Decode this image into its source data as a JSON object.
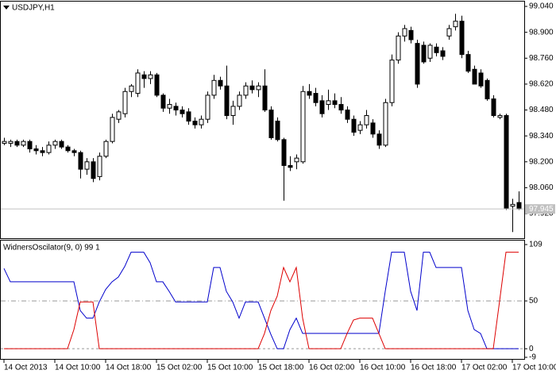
{
  "chart_data": [
    {
      "type": "candlestick",
      "title": "USDJPY,H1",
      "open": [
        98.3,
        98.3,
        98.31,
        98.29,
        98.31,
        98.27,
        98.26,
        98.25,
        98.29,
        98.31,
        98.28,
        98.26,
        98.25,
        98.16,
        98.2,
        98.12,
        98.23,
        98.31,
        98.43,
        98.46,
        98.58,
        98.57,
        98.67,
        98.65,
        98.67,
        98.56,
        98.49,
        98.5,
        98.48,
        98.47,
        98.42,
        98.4,
        98.43,
        98.56,
        98.64,
        98.61,
        98.45,
        98.5,
        98.56,
        98.61,
        98.59,
        98.61,
        98.48,
        98.42,
        98.32,
        98.18,
        98.2,
        98.2,
        98.58,
        98.57,
        98.53,
        98.51,
        98.53,
        98.51,
        98.48,
        98.43,
        98.37,
        98.4,
        98.41,
        98.35,
        98.29,
        98.52,
        98.75,
        98.88,
        98.91,
        98.84,
        98.83,
        98.76,
        98.82,
        98.8,
        98.88,
        98.93,
        98.96,
        98.78,
        98.7,
        98.68,
        98.64,
        98.54,
        98.44,
        98.45,
        97.96,
        97.98
      ],
      "high": [
        98.33,
        98.32,
        98.32,
        98.32,
        98.32,
        98.29,
        98.28,
        98.31,
        98.32,
        98.32,
        98.29,
        98.27,
        98.26,
        98.22,
        98.22,
        98.25,
        98.32,
        98.46,
        98.48,
        98.6,
        98.62,
        98.7,
        98.69,
        98.69,
        98.68,
        98.57,
        98.54,
        98.52,
        98.5,
        98.49,
        98.44,
        98.45,
        98.58,
        98.67,
        98.66,
        98.72,
        98.53,
        98.58,
        98.63,
        98.64,
        98.63,
        98.7,
        98.5,
        98.44,
        98.33,
        98.23,
        98.24,
        98.61,
        98.62,
        98.6,
        98.56,
        98.59,
        98.57,
        98.55,
        98.5,
        98.45,
        98.42,
        98.48,
        98.43,
        98.37,
        98.54,
        98.78,
        98.9,
        98.94,
        98.93,
        98.86,
        98.85,
        98.84,
        98.84,
        98.82,
        98.94,
        99.0,
        98.99,
        98.8,
        98.72,
        98.7,
        98.65,
        98.56,
        98.46,
        98.46,
        98.0,
        98.04
      ],
      "low": [
        98.29,
        98.28,
        98.28,
        98.28,
        98.25,
        98.24,
        98.23,
        98.24,
        98.27,
        98.27,
        98.25,
        98.23,
        98.11,
        98.13,
        98.09,
        98.1,
        98.22,
        98.3,
        98.41,
        98.44,
        98.55,
        98.55,
        98.6,
        98.62,
        98.55,
        98.47,
        98.46,
        98.45,
        98.44,
        98.4,
        98.38,
        98.38,
        98.41,
        98.54,
        98.59,
        98.43,
        98.4,
        98.48,
        98.54,
        98.57,
        98.55,
        98.47,
        98.32,
        98.31,
        97.99,
        98.15,
        98.16,
        98.19,
        98.54,
        98.5,
        98.44,
        98.48,
        98.49,
        98.46,
        98.41,
        98.34,
        98.35,
        98.38,
        98.33,
        98.27,
        98.28,
        98.5,
        98.73,
        98.85,
        98.84,
        98.6,
        98.73,
        98.74,
        98.77,
        98.75,
        98.86,
        98.91,
        98.76,
        98.68,
        98.62,
        98.6,
        98.53,
        98.44,
        98.43,
        97.94,
        97.82,
        97.94
      ],
      "close": [
        98.31,
        98.31,
        98.29,
        98.31,
        98.27,
        98.26,
        98.25,
        98.29,
        98.31,
        98.28,
        98.26,
        98.25,
        98.16,
        98.2,
        98.11,
        98.23,
        98.31,
        98.44,
        98.47,
        98.58,
        98.61,
        98.68,
        98.65,
        98.67,
        98.56,
        98.49,
        98.51,
        98.48,
        98.46,
        98.42,
        98.4,
        98.43,
        98.56,
        98.64,
        98.61,
        98.45,
        98.5,
        98.56,
        98.61,
        98.59,
        98.61,
        98.48,
        98.33,
        98.32,
        98.18,
        98.17,
        98.22,
        98.58,
        98.56,
        98.52,
        98.46,
        98.53,
        98.51,
        98.48,
        98.43,
        98.36,
        98.4,
        98.45,
        98.35,
        98.29,
        98.52,
        98.75,
        98.88,
        98.92,
        98.86,
        98.62,
        98.74,
        98.83,
        98.79,
        98.77,
        98.92,
        98.96,
        98.78,
        98.69,
        98.62,
        98.61,
        98.54,
        98.45,
        98.45,
        97.95,
        97.97,
        97.945
      ],
      "up_color": "#ffffff",
      "down_color": "#000000",
      "edge_color": "#000000",
      "ylim": [
        97.787,
        99.066
      ],
      "yticks": [
        {
          "value": 99.04,
          "label": "99.040"
        },
        {
          "value": 98.9,
          "label": "98.900"
        },
        {
          "value": 98.76,
          "label": "98.760"
        },
        {
          "value": 98.62,
          "label": "98.620"
        },
        {
          "value": 98.48,
          "label": "98.480"
        },
        {
          "value": 98.34,
          "label": "98.340"
        },
        {
          "value": 98.2,
          "label": "98.200"
        },
        {
          "value": 98.06,
          "label": "98.060"
        },
        {
          "value": 97.92,
          "label": "97.920"
        }
      ],
      "last_price": 97.945,
      "last_price_color": "#c0c0c0"
    },
    {
      "type": "line",
      "title": "WidnersOscilator(9, 0) 99 1",
      "categories": [
        "14 Oct 2013",
        null,
        null,
        null,
        null,
        null,
        null,
        null,
        "14 Oct 10:00",
        null,
        null,
        null,
        null,
        null,
        null,
        null,
        "14 Oct 18:00",
        null,
        null,
        null,
        null,
        null,
        null,
        null,
        "15 Oct 02:00",
        null,
        null,
        null,
        null,
        null,
        null,
        null,
        "15 Oct 10:00",
        null,
        null,
        null,
        null,
        null,
        null,
        null,
        "15 Oct 18:00",
        null,
        null,
        null,
        null,
        null,
        null,
        null,
        "16 Oct 02:00",
        null,
        null,
        null,
        null,
        null,
        null,
        null,
        "16 Oct 10:00",
        null,
        null,
        null,
        null,
        null,
        null,
        null,
        "16 Oct 18:00",
        null,
        null,
        null,
        null,
        null,
        null,
        null,
        "17 Oct 02:00",
        null,
        null,
        null,
        null,
        null,
        null,
        null,
        "17 Oct 10:00",
        null
      ],
      "series": [
        {
          "color": "#0000cc",
          "values": [
            84,
            70,
            70,
            70,
            70,
            70,
            70,
            70,
            70,
            70,
            70,
            70,
            40,
            32,
            32,
            49,
            62,
            70,
            75,
            86,
            101,
            101,
            101,
            90,
            70,
            70,
            60,
            49,
            49,
            49,
            49,
            49,
            49,
            85,
            85,
            60,
            49,
            32,
            49,
            49,
            49,
            32,
            15,
            0,
            0,
            20,
            32,
            16,
            16,
            16,
            16,
            16,
            16,
            16,
            16,
            16,
            16,
            16,
            16,
            16,
            60,
            101,
            101,
            101,
            60,
            40,
            101,
            101,
            85,
            85,
            85,
            85,
            85,
            40,
            20,
            16,
            0,
            0,
            0,
            0,
            0,
            0
          ]
        },
        {
          "color": "#dd0000",
          "values": [
            0,
            0,
            0,
            0,
            0,
            0,
            0,
            0,
            0,
            0,
            0,
            20,
            49,
            49,
            49,
            0,
            0,
            0,
            0,
            0,
            0,
            0,
            0,
            0,
            0,
            0,
            0,
            0,
            0,
            0,
            0,
            0,
            0,
            0,
            0,
            0,
            0,
            0,
            0,
            0,
            0,
            16,
            40,
            55,
            85,
            70,
            85,
            32,
            0,
            0,
            0,
            0,
            0,
            0,
            16,
            30,
            32,
            32,
            32,
            16,
            0,
            0,
            0,
            0,
            0,
            0,
            0,
            0,
            0,
            0,
            0,
            0,
            0,
            0,
            0,
            0,
            0,
            0,
            50,
            101,
            101,
            101
          ]
        }
      ],
      "ylim": [
        -9,
        109
      ],
      "yticks": [
        109,
        50,
        0,
        -9
      ],
      "levels": [
        50,
        0
      ],
      "level_color": "#999999"
    }
  ]
}
